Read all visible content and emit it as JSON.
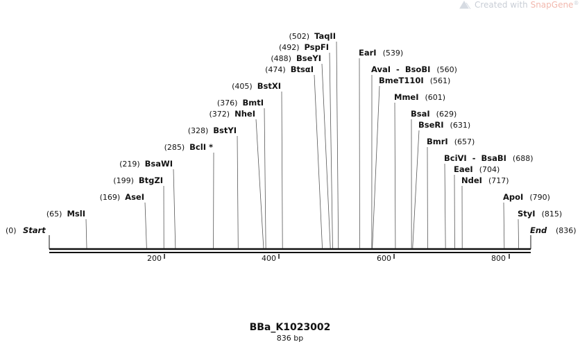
{
  "watermark": {
    "prefix": "Created with ",
    "brand": "SnapGene",
    "mark": "®"
  },
  "title": "BBa_K1023002",
  "subtitle": "836 bp",
  "length": 836,
  "start_label": {
    "name": "Start",
    "pos": "(0)"
  },
  "end_label": {
    "name": "End",
    "pos": "(836)"
  },
  "ticks": [
    "200",
    "400",
    "600",
    "800"
  ],
  "sites": [
    {
      "name": "MslI",
      "pos": 65,
      "pos_text": "(65)",
      "side": "left"
    },
    {
      "name": "AseI",
      "pos": 169,
      "pos_text": "(169)",
      "side": "left"
    },
    {
      "name": "BtgZI",
      "pos": 199,
      "pos_text": "(199)",
      "side": "left"
    },
    {
      "name": "BsaWI",
      "pos": 219,
      "pos_text": "(219)",
      "side": "left"
    },
    {
      "name": "BclI *",
      "pos": 285,
      "pos_text": "(285)",
      "side": "left"
    },
    {
      "name": "BstYI",
      "pos": 328,
      "pos_text": "(328)",
      "side": "left"
    },
    {
      "name": "NheI",
      "pos": 372,
      "pos_text": "(372)",
      "side": "left"
    },
    {
      "name": "BmtI",
      "pos": 376,
      "pos_text": "(376)",
      "side": "left"
    },
    {
      "name": "BstXI",
      "pos": 405,
      "pos_text": "(405)",
      "side": "left"
    },
    {
      "name": "BtsαI",
      "pos": 474,
      "pos_text": "(474)",
      "side": "left"
    },
    {
      "name": "BseYI",
      "pos": 488,
      "pos_text": "(488)",
      "side": "left"
    },
    {
      "name": "PspFI",
      "pos": 492,
      "pos_text": "(492)",
      "side": "left"
    },
    {
      "name": "TaqII",
      "pos": 502,
      "pos_text": "(502)",
      "side": "left"
    },
    {
      "name": "EarI",
      "pos": 539,
      "pos_text": "(539)",
      "side": "right"
    },
    {
      "name": "AvaI  -  BsoBI",
      "pos": 560,
      "pos_text": "(560)",
      "side": "right"
    },
    {
      "name": "BmeT110I",
      "pos": 561,
      "pos_text": "(561)",
      "side": "right"
    },
    {
      "name": "MmeI",
      "pos": 601,
      "pos_text": "(601)",
      "side": "right"
    },
    {
      "name": "BsaI",
      "pos": 629,
      "pos_text": "(629)",
      "side": "right"
    },
    {
      "name": "BseRI",
      "pos": 631,
      "pos_text": "(631)",
      "side": "right"
    },
    {
      "name": "BmrI",
      "pos": 657,
      "pos_text": "(657)",
      "side": "right"
    },
    {
      "name": "BciVI  -  BsaBI",
      "pos": 688,
      "pos_text": "(688)",
      "side": "right"
    },
    {
      "name": "EaeI",
      "pos": 704,
      "pos_text": "(704)",
      "side": "right"
    },
    {
      "name": "NdeI",
      "pos": 717,
      "pos_text": "(717)",
      "side": "right"
    },
    {
      "name": "ApoI",
      "pos": 790,
      "pos_text": "(790)",
      "side": "right"
    },
    {
      "name": "StyI",
      "pos": 815,
      "pos_text": "(815)",
      "side": "right"
    }
  ]
}
